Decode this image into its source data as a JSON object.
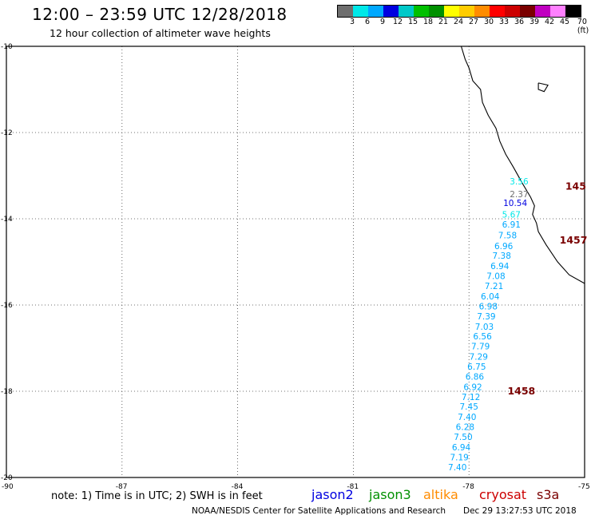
{
  "title": "12:00 – 23:59 UTC 12/28/2018",
  "subtitle": "12 hour collection of altimeter wave heights",
  "colorbar": {
    "colors": [
      "#6e6e6e",
      "#00e8e8",
      "#00a8ff",
      "#0000e0",
      "#00c8c8",
      "#00c000",
      "#009000",
      "#ffff00",
      "#ffcc00",
      "#ff8c00",
      "#ff0000",
      "#cc0000",
      "#7a0000",
      "#c000c0",
      "#ff80ff",
      "#000000"
    ],
    "labels": [
      "3",
      "6",
      "9",
      "12",
      "15",
      "18",
      "21",
      "24",
      "27",
      "30",
      "33",
      "36",
      "39",
      "42",
      "45",
      "70 (ft)"
    ]
  },
  "axes": {
    "lon_ticks": [
      {
        "value": -90,
        "label": "-90"
      },
      {
        "value": -87,
        "label": "-87"
      },
      {
        "value": -84,
        "label": "-84"
      },
      {
        "value": -81,
        "label": "-81"
      },
      {
        "value": -78,
        "label": "-78"
      },
      {
        "value": -75,
        "label": "-75"
      }
    ],
    "lat_ticks": [
      {
        "value": -10,
        "label": "-10"
      },
      {
        "value": -12,
        "label": "-12"
      },
      {
        "value": -14,
        "label": "-14"
      },
      {
        "value": -16,
        "label": "-16"
      },
      {
        "value": -18,
        "label": "-18"
      },
      {
        "value": -20,
        "label": "-20"
      }
    ],
    "lon_range": [
      -90,
      -75
    ],
    "lat_range": [
      -20,
      -10
    ]
  },
  "measurements": [
    {
      "text": "3.56",
      "lon": -76.7,
      "lat": -13.2,
      "color": "#00e8e8"
    },
    {
      "text": "2.37",
      "lon": -76.7,
      "lat": -13.5,
      "color": "#6e6e6e"
    },
    {
      "text": "10.54",
      "lon": -76.8,
      "lat": -13.7,
      "color": "#0000e0"
    },
    {
      "text": "5.67",
      "lon": -76.9,
      "lat": -13.97,
      "color": "#00e8e8"
    },
    {
      "text": "6.91",
      "lon": -76.9,
      "lat": -14.2,
      "color": "#00a8ff"
    },
    {
      "text": "7.58",
      "lon": -77.0,
      "lat": -14.45,
      "color": "#00a8ff"
    },
    {
      "text": "6.96",
      "lon": -77.1,
      "lat": -14.7,
      "color": "#00a8ff"
    },
    {
      "text": "7.38",
      "lon": -77.15,
      "lat": -14.93,
      "color": "#00a8ff"
    },
    {
      "text": "6.94",
      "lon": -77.2,
      "lat": -15.17,
      "color": "#00a8ff"
    },
    {
      "text": "7.08",
      "lon": -77.3,
      "lat": -15.4,
      "color": "#00a8ff"
    },
    {
      "text": "7.21",
      "lon": -77.35,
      "lat": -15.63,
      "color": "#00a8ff"
    },
    {
      "text": "6.04",
      "lon": -77.45,
      "lat": -15.87,
      "color": "#00a8ff"
    },
    {
      "text": "6.98",
      "lon": -77.5,
      "lat": -16.1,
      "color": "#00a8ff"
    },
    {
      "text": "7.39",
      "lon": -77.55,
      "lat": -16.33,
      "color": "#00a8ff"
    },
    {
      "text": "7.03",
      "lon": -77.6,
      "lat": -16.57,
      "color": "#00a8ff"
    },
    {
      "text": "6.56",
      "lon": -77.65,
      "lat": -16.8,
      "color": "#00a8ff"
    },
    {
      "text": "7.79",
      "lon": -77.7,
      "lat": -17.03,
      "color": "#00a8ff"
    },
    {
      "text": "7.29",
      "lon": -77.75,
      "lat": -17.27,
      "color": "#00a8ff"
    },
    {
      "text": "6.75",
      "lon": -77.8,
      "lat": -17.5,
      "color": "#00a8ff"
    },
    {
      "text": "6.86",
      "lon": -77.85,
      "lat": -17.73,
      "color": "#00a8ff"
    },
    {
      "text": "6.92",
      "lon": -77.9,
      "lat": -17.97,
      "color": "#00a8ff"
    },
    {
      "text": "7.12",
      "lon": -77.95,
      "lat": -18.2,
      "color": "#00a8ff"
    },
    {
      "text": "7.45",
      "lon": -78.0,
      "lat": -18.43,
      "color": "#00a8ff"
    },
    {
      "text": "7.40",
      "lon": -78.05,
      "lat": -18.67,
      "color": "#00a8ff"
    },
    {
      "text": "6.28",
      "lon": -78.1,
      "lat": -18.9,
      "color": "#00a8ff"
    },
    {
      "text": "7.50",
      "lon": -78.15,
      "lat": -19.13,
      "color": "#00a8ff"
    },
    {
      "text": "6.94",
      "lon": -78.2,
      "lat": -19.37,
      "color": "#00a8ff"
    },
    {
      "text": "7.19",
      "lon": -78.25,
      "lat": -19.6,
      "color": "#00a8ff"
    },
    {
      "text": "7.40",
      "lon": -78.3,
      "lat": -19.83,
      "color": "#00a8ff"
    }
  ],
  "time_labels": [
    {
      "text": "145",
      "lon": -75.5,
      "lat": -13.25,
      "color": "#7a0000"
    },
    {
      "text": "1457",
      "lon": -75.65,
      "lat": -14.5,
      "color": "#7a0000"
    },
    {
      "text": "1458",
      "lon": -77.0,
      "lat": -18.0,
      "color": "#7a0000"
    }
  ],
  "coastline": [
    [
      -78.2,
      -10.0
    ],
    [
      -78.1,
      -10.3
    ],
    [
      -78.0,
      -10.5
    ],
    [
      -77.9,
      -10.8
    ],
    [
      -77.7,
      -11.0
    ],
    [
      -77.65,
      -11.3
    ],
    [
      -77.5,
      -11.6
    ],
    [
      -77.3,
      -11.9
    ],
    [
      -77.2,
      -12.2
    ],
    [
      -77.05,
      -12.5
    ],
    [
      -76.85,
      -12.8
    ],
    [
      -76.6,
      -13.2
    ],
    [
      -76.4,
      -13.5
    ],
    [
      -76.3,
      -13.7
    ],
    [
      -76.35,
      -13.9
    ],
    [
      -76.25,
      -14.1
    ],
    [
      -76.2,
      -14.3
    ],
    [
      -76.0,
      -14.6
    ],
    [
      -75.7,
      -15.0
    ],
    [
      -75.4,
      -15.3
    ],
    [
      -75.0,
      -15.5
    ]
  ],
  "island": [
    [
      -76.2,
      -10.85
    ],
    [
      -75.95,
      -10.9
    ],
    [
      -76.05,
      -11.05
    ],
    [
      -76.2,
      -11.0
    ],
    [
      -76.2,
      -10.85
    ]
  ],
  "note": "note: 1) Time is in UTC; 2) SWH is in feet",
  "missions": [
    {
      "name": "jason2",
      "color": "#0000e0"
    },
    {
      "name": "jason3",
      "color": "#009000"
    },
    {
      "name": "altika",
      "color": "#ff8c00"
    },
    {
      "name": "cryosat",
      "color": "#cc0000"
    },
    {
      "name": "s3a",
      "color": "#7a0000"
    }
  ],
  "credit": "NOAA/NESDIS Center for Satellite Applications and Research",
  "timestamp": "Dec 29 13:27:53 UTC 2018"
}
